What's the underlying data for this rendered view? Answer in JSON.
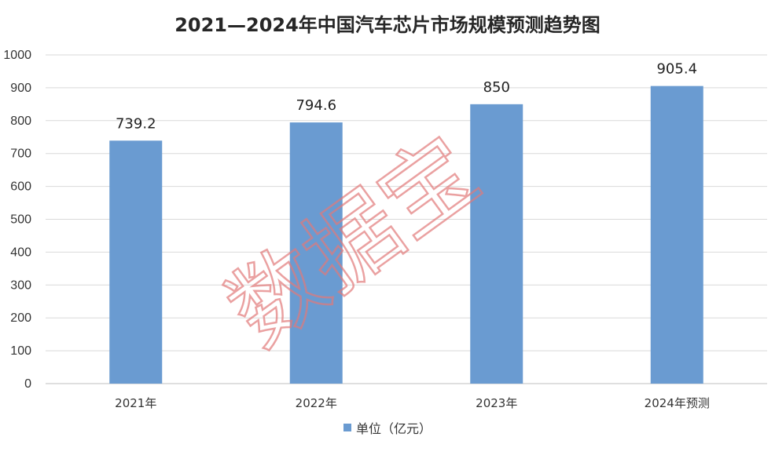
{
  "chart_data": {
    "type": "bar",
    "title": "2021—2024年中国汽车芯片市场规模预测趋势图",
    "categories": [
      "2021年",
      "2022年",
      "2023年",
      "2024年预测"
    ],
    "series": [
      {
        "name": "单位（亿元）",
        "values": [
          739.2,
          794.6,
          850,
          905.4
        ]
      }
    ],
    "data_labels": [
      "739.2",
      "794.6",
      "850",
      "905.4"
    ],
    "y_ticks": [
      "0",
      "100",
      "200",
      "300",
      "400",
      "500",
      "600",
      "700",
      "800",
      "900",
      "1000"
    ],
    "ylim": [
      0,
      1000
    ],
    "xlabel": "",
    "ylabel": "",
    "grid": true,
    "legend_position": "bottom",
    "bar_color": "#6a9bd1",
    "gridline_color": "#d9d9d9"
  },
  "watermark": {
    "text": "数据宝",
    "color": "#e27a7a"
  }
}
